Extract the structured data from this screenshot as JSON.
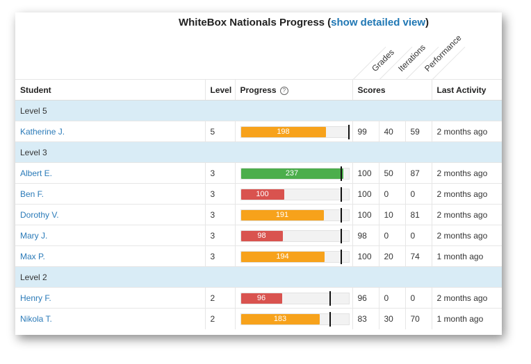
{
  "header": {
    "title": "WhiteBox Nationals Progress",
    "paren_open": "(",
    "link_text": "show detailed view",
    "paren_close": ")",
    "score_labels": [
      "Grades",
      "Iterations",
      "Performance"
    ]
  },
  "columns": {
    "student": "Student",
    "level": "Level",
    "progress": "Progress",
    "scores": "Scores",
    "last_activity": "Last Activity"
  },
  "icons": {
    "progress_help": "question-circle-icon"
  },
  "colors": {
    "green": "#4cae4c",
    "orange": "#f7a21b",
    "red": "#d9534f",
    "group_bg": "#d9ecf6",
    "link": "#2a7ab8"
  },
  "groups": [
    {
      "label": "Level 5",
      "students": [
        {
          "name": "Katherine J.",
          "level": "5",
          "progress": "198",
          "progress_fraction": 0.78,
          "target_fraction": 0.995,
          "status": "orange",
          "grades": "99",
          "iterations": "40",
          "performance": "59",
          "last_activity": "2 months ago"
        }
      ]
    },
    {
      "label": "Level 3",
      "students": [
        {
          "name": "Albert E.",
          "level": "3",
          "progress": "237",
          "progress_fraction": 0.935,
          "target_fraction": 0.925,
          "status": "green",
          "grades": "100",
          "iterations": "50",
          "performance": "87",
          "last_activity": "2 months ago"
        },
        {
          "name": "Ben F.",
          "level": "3",
          "progress": "100",
          "progress_fraction": 0.395,
          "target_fraction": 0.925,
          "status": "red",
          "grades": "100",
          "iterations": "0",
          "performance": "0",
          "last_activity": "2 months ago"
        },
        {
          "name": "Dorothy V.",
          "level": "3",
          "progress": "191",
          "progress_fraction": 0.755,
          "target_fraction": 0.925,
          "status": "orange",
          "grades": "100",
          "iterations": "10",
          "performance": "81",
          "last_activity": "2 months ago"
        },
        {
          "name": "Mary J.",
          "level": "3",
          "progress": "98",
          "progress_fraction": 0.385,
          "target_fraction": 0.925,
          "status": "red",
          "grades": "98",
          "iterations": "0",
          "performance": "0",
          "last_activity": "2 months ago"
        },
        {
          "name": "Max P.",
          "level": "3",
          "progress": "194",
          "progress_fraction": 0.765,
          "target_fraction": 0.925,
          "status": "orange",
          "grades": "100",
          "iterations": "20",
          "performance": "74",
          "last_activity": "1 month ago"
        }
      ]
    },
    {
      "label": "Level 2",
      "students": [
        {
          "name": "Henry F.",
          "level": "2",
          "progress": "96",
          "progress_fraction": 0.375,
          "target_fraction": 0.82,
          "status": "red",
          "grades": "96",
          "iterations": "0",
          "performance": "0",
          "last_activity": "2 months ago"
        },
        {
          "name": "Nikola T.",
          "level": "2",
          "progress": "183",
          "progress_fraction": 0.72,
          "target_fraction": 0.82,
          "status": "orange",
          "grades": "83",
          "iterations": "30",
          "performance": "70",
          "last_activity": "1 month ago"
        }
      ]
    }
  ]
}
